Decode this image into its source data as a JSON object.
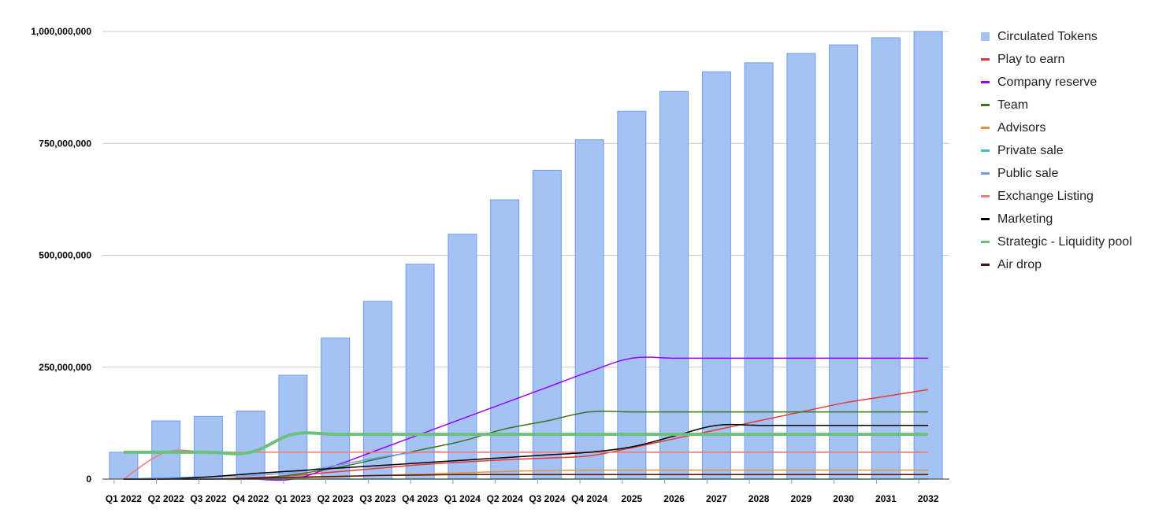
{
  "chart_data": {
    "type": "bar",
    "categories": [
      "Q1 2022",
      "Q2 2022",
      "Q3 2022",
      "Q4 2022",
      "Q1 2023",
      "Q2 2023",
      "Q3 2023",
      "Q4 2023",
      "Q1 2024",
      "Q2 2024",
      "Q3 2024",
      "Q4 2024",
      "2025",
      "2026",
      "2027",
      "2028",
      "2029",
      "2030",
      "2031",
      "2032"
    ],
    "ylim": [
      0,
      1000000000
    ],
    "yticks": [
      0,
      250000000,
      500000000,
      750000000,
      1000000000
    ],
    "ytick_labels": [
      "0",
      "250,000,000",
      "500,000,000",
      "750,000,000",
      "1,000,000,000"
    ],
    "grid": true,
    "legend_position": "right",
    "bars": {
      "name": "Circulated Tokens",
      "color": "#a4c2f4",
      "stroke": "#6d9eeb",
      "values": [
        60000000,
        130000000,
        140000000,
        152000000,
        232000000,
        315000000,
        397000000,
        480000000,
        547000000,
        624000000,
        690000000,
        758000000,
        822000000,
        866000000,
        910000000,
        930000000,
        951000000,
        970000000,
        986000000,
        1000000000
      ]
    },
    "series": [
      {
        "name": "Play to earn",
        "color": "#e53935",
        "width": 1.5,
        "values": [
          0,
          0,
          0,
          3000000,
          8000000,
          16000000,
          24000000,
          32000000,
          38000000,
          43000000,
          47000000,
          52000000,
          70000000,
          90000000,
          110000000,
          130000000,
          150000000,
          170000000,
          185000000,
          200000000
        ]
      },
      {
        "name": "Company reserve",
        "color": "#9900ff",
        "width": 1.5,
        "values": [
          0,
          0,
          0,
          0,
          0,
          30000000,
          65000000,
          100000000,
          135000000,
          170000000,
          205000000,
          240000000,
          270000000,
          270000000,
          270000000,
          270000000,
          270000000,
          270000000,
          270000000,
          270000000
        ]
      },
      {
        "name": "Team",
        "color": "#38761d",
        "width": 1.5,
        "values": [
          0,
          0,
          0,
          0,
          10000000,
          25000000,
          45000000,
          65000000,
          85000000,
          112000000,
          130000000,
          150000000,
          150000000,
          150000000,
          150000000,
          150000000,
          150000000,
          150000000,
          150000000,
          150000000
        ]
      },
      {
        "name": "Advisors",
        "color": "#e69138",
        "width": 1.5,
        "values": [
          0,
          0,
          0,
          0,
          2000000,
          5000000,
          8000000,
          11000000,
          14000000,
          17000000,
          19000000,
          20000000,
          20000000,
          20000000,
          20000000,
          20000000,
          20000000,
          20000000,
          20000000,
          20000000
        ]
      },
      {
        "name": "Private sale",
        "color": "#46bdc6",
        "width": 1.5,
        "values": [
          0,
          0,
          0,
          0,
          0,
          0,
          0,
          0,
          0,
          0,
          0,
          0,
          0,
          0,
          0,
          0,
          0,
          0,
          0,
          0
        ]
      },
      {
        "name": "Public sale",
        "color": "#6d9eeb",
        "width": 1.5,
        "values": [
          0,
          3000000,
          5000000,
          8000000,
          15000000,
          30000000,
          48000000,
          60000000,
          60000000,
          60000000,
          60000000,
          60000000,
          60000000,
          60000000,
          60000000,
          60000000,
          60000000,
          60000000,
          60000000,
          60000000
        ]
      },
      {
        "name": "Exchange Listing",
        "color": "#f07b72",
        "width": 1.5,
        "values": [
          0,
          60000000,
          60000000,
          60000000,
          60000000,
          60000000,
          60000000,
          60000000,
          60000000,
          60000000,
          60000000,
          60000000,
          60000000,
          60000000,
          60000000,
          60000000,
          60000000,
          60000000,
          60000000,
          60000000
        ]
      },
      {
        "name": "Marketing",
        "color": "#000000",
        "width": 1.5,
        "values": [
          0,
          0,
          5000000,
          12000000,
          18000000,
          24000000,
          30000000,
          36000000,
          42000000,
          48000000,
          54000000,
          60000000,
          72000000,
          96000000,
          120000000,
          120000000,
          120000000,
          120000000,
          120000000,
          120000000
        ]
      },
      {
        "name": "Strategic - Liquidity pool",
        "color": "#6bc07b",
        "width": 4,
        "values": [
          60000000,
          60000000,
          60000000,
          60000000,
          100000000,
          100000000,
          100000000,
          100000000,
          100000000,
          100000000,
          100000000,
          100000000,
          100000000,
          100000000,
          100000000,
          100000000,
          100000000,
          100000000,
          100000000,
          100000000
        ]
      },
      {
        "name": "Air drop",
        "color": "#4a1407",
        "width": 1.5,
        "values": [
          0,
          0,
          0,
          2000000,
          4000000,
          6000000,
          8000000,
          9000000,
          10000000,
          10000000,
          10000000,
          10000000,
          10000000,
          10000000,
          10000000,
          10000000,
          10000000,
          10000000,
          10000000,
          10000000
        ]
      }
    ]
  }
}
